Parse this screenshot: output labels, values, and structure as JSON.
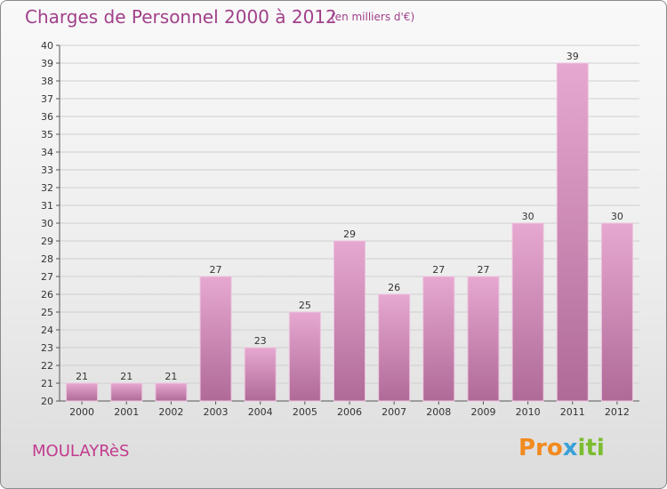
{
  "title": "Charges de Personnel 2000 à 2012",
  "subtitle": "(en milliers d'€)",
  "commune": "MOULAYRèS",
  "brand": {
    "p1": "Pro",
    "p2": "x",
    "p3": "iti"
  },
  "colors": {
    "title": "#a0408a",
    "bar_light": "#e6a8d0",
    "bar_dark": "#b06a98",
    "grid": "#cfcfcf"
  },
  "chart_data": {
    "type": "bar",
    "categories": [
      "2000",
      "2001",
      "2002",
      "2003",
      "2004",
      "2005",
      "2006",
      "2007",
      "2008",
      "2009",
      "2010",
      "2011",
      "2012"
    ],
    "values": [
      21,
      21,
      21,
      27,
      23,
      25,
      29,
      26,
      27,
      27,
      30,
      39,
      30
    ],
    "ylim": [
      20,
      40
    ],
    "yticks": [
      20,
      21,
      22,
      23,
      24,
      25,
      26,
      27,
      28,
      29,
      30,
      31,
      32,
      33,
      34,
      35,
      36,
      37,
      38,
      39,
      40
    ],
    "grid": true,
    "xlabel": "",
    "ylabel": ""
  }
}
